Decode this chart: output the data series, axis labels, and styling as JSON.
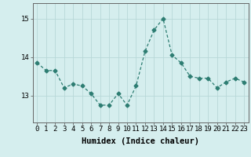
{
  "x": [
    0,
    1,
    2,
    3,
    4,
    5,
    6,
    7,
    8,
    9,
    10,
    11,
    12,
    13,
    14,
    15,
    16,
    17,
    18,
    19,
    20,
    21,
    22,
    23
  ],
  "y": [
    13.85,
    13.65,
    13.65,
    13.2,
    13.3,
    13.25,
    13.05,
    12.75,
    12.75,
    13.05,
    12.75,
    13.25,
    14.15,
    14.7,
    15.0,
    14.05,
    13.85,
    13.5,
    13.45,
    13.45,
    13.2,
    13.35,
    13.45,
    13.35
  ],
  "line_color": "#2d7d72",
  "marker": "D",
  "marker_size": 2.5,
  "bg_color": "#d5eeee",
  "grid_color": "#b8d8d8",
  "xlabel": "Humidex (Indice chaleur)",
  "xlabel_fontsize": 7.5,
  "tick_fontsize": 6.5,
  "ylim": [
    12.3,
    15.4
  ],
  "yticks": [
    13,
    14,
    15
  ],
  "xlim": [
    -0.5,
    23.5
  ]
}
